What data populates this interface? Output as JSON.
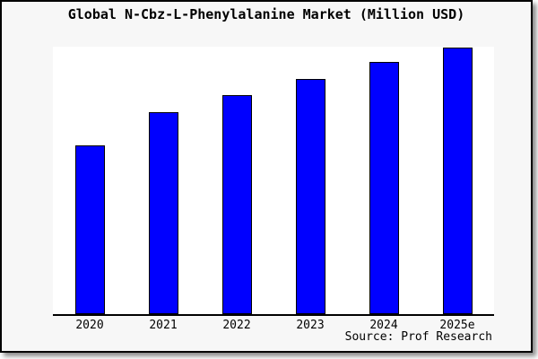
{
  "source": "Source: Prof Research",
  "colors": {
    "bar_fill": "#0000ff",
    "bar_border": "#000000",
    "chart_background": "#f7f7f7",
    "plot_background": "#ffffff",
    "axis": "#000000",
    "text": "#000000"
  },
  "chart_data": {
    "type": "bar",
    "title": "Global N-Cbz-L-Phenylalanine Market (Million USD)",
    "categories": [
      "2020",
      "2021",
      "2022",
      "2023",
      "2024",
      "2025e"
    ],
    "values_relative_to_max_pct": [
      63.3,
      75.8,
      82.2,
      88.2,
      94.6,
      100.0
    ],
    "xlabel": "",
    "ylabel": "",
    "y_axis_visible": false,
    "gridlines": false,
    "legend": false,
    "annotation": "Source: Prof Research"
  }
}
